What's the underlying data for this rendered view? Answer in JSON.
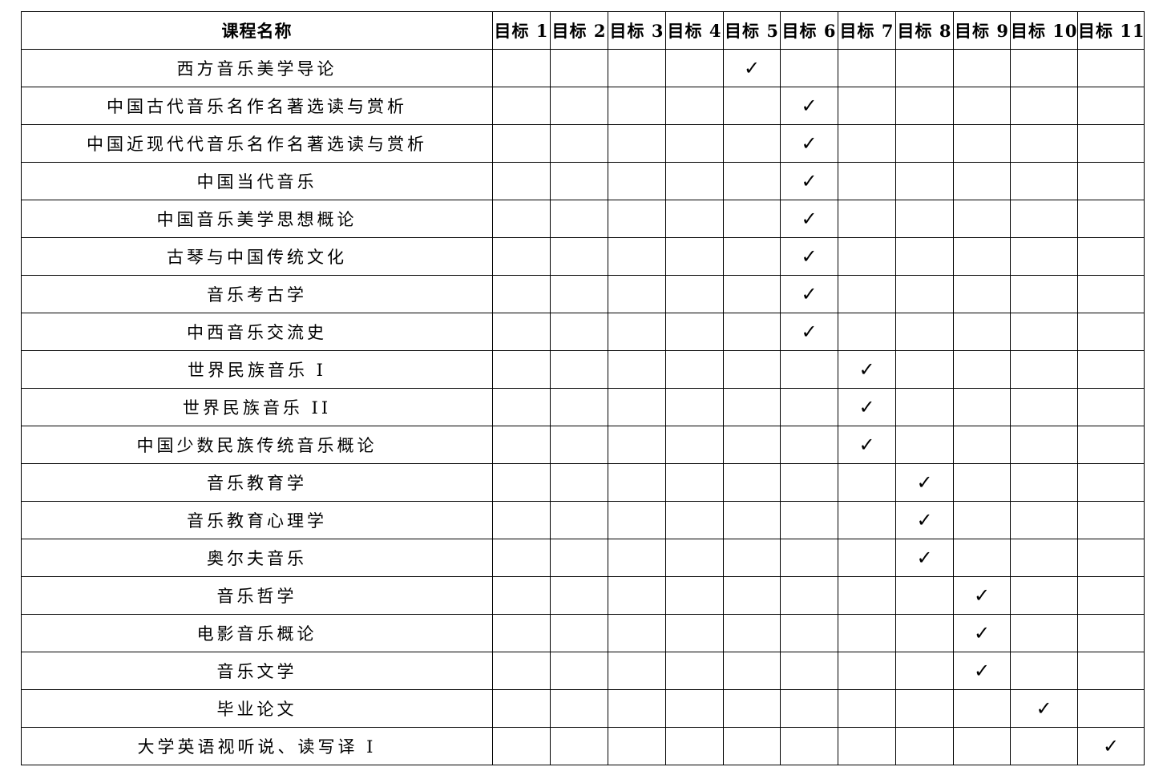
{
  "header": {
    "course_name": "课程名称",
    "targets": [
      "目标 1",
      "目标 2",
      "目标 3",
      "目标 4",
      "目标 5",
      "目标 6",
      "目标 7",
      "目标 8",
      "目标 9",
      "目标 10",
      "目标 11"
    ]
  },
  "check_symbol": "✓",
  "rows": [
    {
      "course": "西方音乐美学导论",
      "target": 5
    },
    {
      "course": "中国古代音乐名作名著选读与赏析",
      "target": 6
    },
    {
      "course": "中国近现代代音乐名作名著选读与赏析",
      "target": 6
    },
    {
      "course": "中国当代音乐",
      "target": 6
    },
    {
      "course": "中国音乐美学思想概论",
      "target": 6
    },
    {
      "course": "古琴与中国传统文化",
      "target": 6
    },
    {
      "course": "音乐考古学",
      "target": 6
    },
    {
      "course": "中西音乐交流史",
      "target": 6
    },
    {
      "course": "世界民族音乐 I",
      "target": 7
    },
    {
      "course": "世界民族音乐 II",
      "target": 7
    },
    {
      "course": "中国少数民族传统音乐概论",
      "target": 7
    },
    {
      "course": "音乐教育学",
      "target": 8
    },
    {
      "course": "音乐教育心理学",
      "target": 8
    },
    {
      "course": "奥尔夫音乐",
      "target": 8
    },
    {
      "course": "音乐哲学",
      "target": 9
    },
    {
      "course": "电影音乐概论",
      "target": 9
    },
    {
      "course": "音乐文学",
      "target": 9
    },
    {
      "course": "毕业论文",
      "target": 10
    },
    {
      "course": "大学英语视听说、读写译 I",
      "target": 11
    }
  ]
}
